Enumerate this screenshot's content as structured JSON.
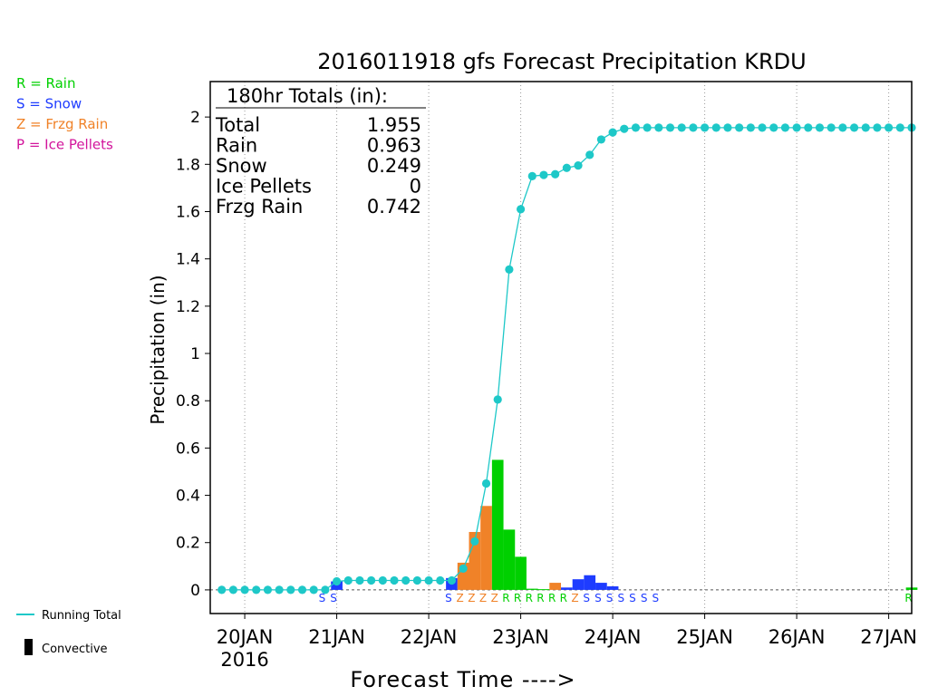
{
  "chart_data": {
    "type": "bar",
    "title": "2016011918 gfs Forecast Precipitation KRDU",
    "ylabel": "Precipitation (in)",
    "xlabel": "Forecast Time ---->",
    "ylim": [
      -0.1,
      2.15
    ],
    "yticks": [
      "0",
      "0.2",
      "0.4",
      "0.6",
      "0.8",
      "1",
      "1.2",
      "1.4",
      "1.6",
      "1.8",
      "2"
    ],
    "ytick_values": [
      0,
      0.2,
      0.4,
      0.6,
      0.8,
      1,
      1.2,
      1.4,
      1.6,
      1.8,
      2
    ],
    "x_hours_range": [
      -3,
      180
    ],
    "xticks": [
      {
        "label": "20JAN",
        "sub": "2016",
        "hour": 6
      },
      {
        "label": "21JAN",
        "hour": 30
      },
      {
        "label": "22JAN",
        "hour": 54
      },
      {
        "label": "23JAN",
        "hour": 78
      },
      {
        "label": "24JAN",
        "hour": 102
      },
      {
        "label": "25JAN",
        "hour": 126
      },
      {
        "label": "26JAN",
        "hour": 150
      },
      {
        "label": "27JAN",
        "hour": 174
      }
    ],
    "grid": "vertical dotted at day ticks",
    "colors": {
      "rain": "#00d000",
      "snow": "#1e3cff",
      "frzg_rain": "#f08228",
      "ice_pellets": "#d2149b",
      "running_total": "#1ec8c8",
      "convective": "#000000"
    },
    "legend": [
      {
        "key": "rain",
        "text": "R = Rain"
      },
      {
        "key": "snow",
        "text": "S = Snow"
      },
      {
        "key": "frzg_rain",
        "text": "Z = Frzg Rain"
      },
      {
        "key": "ice_pellets",
        "text": "P = Ice Pellets"
      }
    ],
    "legend_bottom": {
      "running_total": "Running Total",
      "convective": "Convective"
    },
    "totals_box": {
      "heading": "180hr Totals (in):",
      "rows": [
        {
          "label": "Total",
          "value": "1.955"
        },
        {
          "label": "Rain",
          "value": "0.963"
        },
        {
          "label": "Snow",
          "value": "0.249"
        },
        {
          "label": "Ice Pellets",
          "value": "0"
        },
        {
          "label": "Frzg Rain",
          "value": "0.742"
        }
      ]
    },
    "series": [
      {
        "name": "Running Total",
        "kind": "line",
        "hours": [
          0,
          3,
          6,
          9,
          12,
          15,
          18,
          21,
          24,
          27,
          30,
          33,
          36,
          39,
          42,
          45,
          48,
          51,
          54,
          57,
          60,
          63,
          66,
          69,
          72,
          75,
          78,
          81,
          84,
          87,
          90,
          93,
          96,
          99,
          102,
          105,
          108,
          111,
          114,
          117,
          120,
          123,
          126,
          129,
          132,
          135,
          138,
          141,
          144,
          147,
          150,
          153,
          156,
          159,
          162,
          165,
          168,
          171,
          174,
          177,
          180
        ],
        "values": [
          0,
          0,
          0,
          0,
          0,
          0,
          0,
          0,
          0,
          0,
          0.036,
          0.04,
          0.04,
          0.04,
          0.04,
          0.04,
          0.04,
          0.04,
          0.04,
          0.04,
          0.04,
          0.09,
          0.205,
          0.45,
          0.805,
          1.355,
          1.61,
          1.75,
          1.755,
          1.758,
          1.785,
          1.795,
          1.84,
          1.905,
          1.935,
          1.95,
          1.955,
          1.955,
          1.955,
          1.955,
          1.955,
          1.955,
          1.955,
          1.955,
          1.955,
          1.955,
          1.955,
          1.955,
          1.955,
          1.955,
          1.955,
          1.955,
          1.955,
          1.955,
          1.955,
          1.955,
          1.955,
          1.955,
          1.955,
          1.955,
          1.955
        ]
      }
    ],
    "bars": [
      {
        "hour": 30,
        "value": 0.036,
        "type": "S"
      },
      {
        "hour": 60,
        "value": 0.05,
        "type": "S"
      },
      {
        "hour": 63,
        "value": 0.115,
        "type": "Z"
      },
      {
        "hour": 66,
        "value": 0.245,
        "type": "Z"
      },
      {
        "hour": 69,
        "value": 0.355,
        "type": "Z"
      },
      {
        "hour": 72,
        "value": 0.55,
        "type": "R"
      },
      {
        "hour": 75,
        "value": 0.255,
        "type": "R"
      },
      {
        "hour": 78,
        "value": 0.14,
        "type": "R"
      },
      {
        "hour": 81,
        "value": 0.005,
        "type": "R"
      },
      {
        "hour": 84,
        "value": 0.003,
        "type": "R"
      },
      {
        "hour": 87,
        "value": 0.03,
        "type": "Z"
      },
      {
        "hour": 90,
        "value": 0.01,
        "type": "S"
      },
      {
        "hour": 93,
        "value": 0.045,
        "type": "S"
      },
      {
        "hour": 96,
        "value": 0.062,
        "type": "S"
      },
      {
        "hour": 99,
        "value": 0.03,
        "type": "S"
      },
      {
        "hour": 102,
        "value": 0.015,
        "type": "S"
      },
      {
        "hour": 180,
        "value": 0.01,
        "type": "R"
      }
    ],
    "ptype_labels": [
      {
        "hour": 27,
        "text": "S"
      },
      {
        "hour": 30,
        "text": "S"
      },
      {
        "hour": 60,
        "text": "S"
      },
      {
        "hour": 63,
        "text": "Z"
      },
      {
        "hour": 66,
        "text": "Z"
      },
      {
        "hour": 69,
        "text": "Z"
      },
      {
        "hour": 72,
        "text": "Z"
      },
      {
        "hour": 75,
        "text": "R"
      },
      {
        "hour": 78,
        "text": "R"
      },
      {
        "hour": 81,
        "text": "R"
      },
      {
        "hour": 84,
        "text": "R"
      },
      {
        "hour": 87,
        "text": "R"
      },
      {
        "hour": 90,
        "text": "R"
      },
      {
        "hour": 93,
        "text": "Z"
      },
      {
        "hour": 96,
        "text": "S"
      },
      {
        "hour": 99,
        "text": "S"
      },
      {
        "hour": 102,
        "text": "S"
      },
      {
        "hour": 105,
        "text": "S"
      },
      {
        "hour": 108,
        "text": "S"
      },
      {
        "hour": 111,
        "text": "S"
      },
      {
        "hour": 114,
        "text": "S"
      },
      {
        "hour": 180,
        "text": "R"
      }
    ]
  }
}
